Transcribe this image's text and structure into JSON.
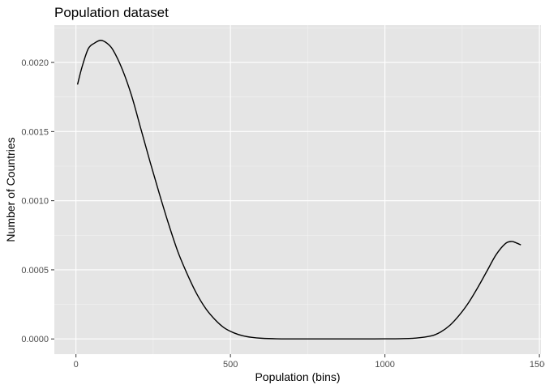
{
  "chart_data": {
    "type": "line",
    "title": "Population dataset",
    "xlabel": "Population (bins)",
    "ylabel": "Number of Countries",
    "xlim": [
      -70,
      1505
    ],
    "ylim": [
      -0.00011,
      0.00227
    ],
    "x_ticks": [
      0,
      500,
      1000,
      1500
    ],
    "x_tick_labels": [
      "0",
      "500",
      "1000",
      "1500"
    ],
    "y_ticks": [
      0,
      0.0005,
      0.001,
      0.0015,
      0.002
    ],
    "y_tick_labels": [
      "0.0000",
      "0.0005",
      "0.0010",
      "0.0015",
      "0.0020"
    ],
    "grid": true,
    "legend": "none",
    "colors": {
      "panel": "#e5e5e5",
      "grid_major": "#ffffff",
      "grid_minor": "#f2f2f2",
      "line": "#000000",
      "tick": "#333333"
    },
    "series": [
      {
        "x": [
          5,
          20,
          40,
          60,
          80,
          100,
          120,
          150,
          180,
          210,
          240,
          270,
          300,
          330,
          360,
          390,
          420,
          450,
          480,
          510,
          540,
          570,
          600,
          650,
          700,
          750,
          800,
          850,
          900,
          950,
          1000,
          1050,
          1100,
          1150,
          1180,
          1210,
          1240,
          1270,
          1300,
          1330,
          1360,
          1390,
          1410,
          1425,
          1440
        ],
        "y": [
          0.00184,
          0.00197,
          0.0021,
          0.00214,
          0.00216,
          0.00214,
          0.00209,
          0.00195,
          0.00176,
          0.00152,
          0.00128,
          0.00105,
          0.00083,
          0.00063,
          0.00047,
          0.00033,
          0.00022,
          0.00014,
          8e-05,
          4.5e-05,
          2.3e-05,
          1.1e-05,
          5e-06,
          1e-06,
          3e-07,
          1e-07,
          5e-08,
          5e-08,
          1e-07,
          3e-07,
          8e-07,
          2e-06,
          6e-06,
          2.2e-05,
          5e-05,
          9.8e-05,
          0.00017,
          0.00026,
          0.00037,
          0.00049,
          0.00061,
          0.00069,
          0.000705,
          0.000695,
          0.00068
        ]
      }
    ]
  }
}
